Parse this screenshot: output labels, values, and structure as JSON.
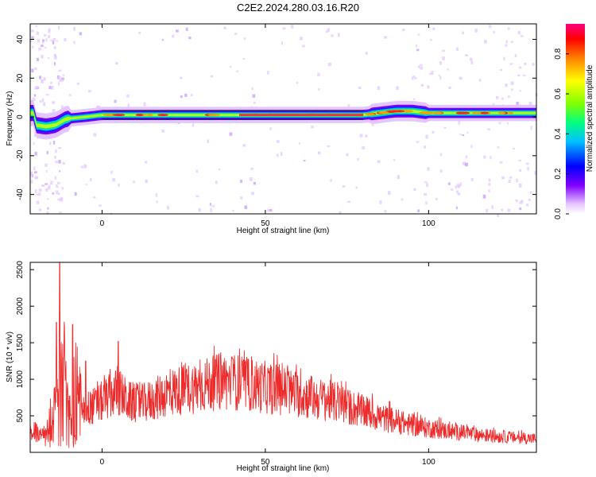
{
  "title": "C2E2.2024.280.03.16.R20",
  "chart_data": [
    {
      "type": "heatmap",
      "xlabel": "Height of straight line (km)",
      "ylabel": "Frequency (Hz)",
      "xlim": [
        -22,
        133
      ],
      "ylim": [
        -50,
        48
      ],
      "x_ticks": [
        0,
        50,
        100
      ],
      "x_tick_labels": [
        "0",
        "50",
        "100"
      ],
      "y_ticks": [
        40,
        20,
        0,
        -20,
        -40
      ],
      "y_tick_labels": [
        "40",
        "20",
        "0",
        "-20",
        "-40"
      ],
      "colorbar": {
        "label": "Normalized spectral amplitude",
        "range": [
          0,
          0.95
        ],
        "ticks": [
          0.0,
          0.2,
          0.4,
          0.6,
          0.8
        ],
        "tick_labels": [
          "0.0",
          "0.2",
          "0.4",
          "0.6",
          "0.8"
        ],
        "colormap": [
          "#ffffff",
          "#e8c8ff",
          "#8000ff",
          "#0000ff",
          "#00c0ff",
          "#00ff80",
          "#80ff00",
          "#ffff00",
          "#ff8000",
          "#ff0000",
          "#ff0080"
        ]
      },
      "ridge_frequency_hz": [
        {
          "x": -21,
          "y": -4
        },
        {
          "x": -17,
          "y": -5
        },
        {
          "x": -14,
          "y": -4
        },
        {
          "x": -11,
          "y": -1
        },
        {
          "x": -5,
          "y": 0
        },
        {
          "x": 0,
          "y": 1
        },
        {
          "x": 10,
          "y": 1
        },
        {
          "x": 30,
          "y": 1
        },
        {
          "x": 50,
          "y": 1
        },
        {
          "x": 70,
          "y": 1
        },
        {
          "x": 80,
          "y": 1
        },
        {
          "x": 85,
          "y": 2
        },
        {
          "x": 90,
          "y": 3
        },
        {
          "x": 95,
          "y": 3
        },
        {
          "x": 100,
          "y": 2
        },
        {
          "x": 110,
          "y": 2
        },
        {
          "x": 120,
          "y": 2
        },
        {
          "x": 133,
          "y": 2
        }
      ],
      "grid": false
    },
    {
      "type": "line",
      "xlabel": "Height of straight line (km)",
      "ylabel": "SNR (10 * v/v)",
      "xlim": [
        -22,
        133
      ],
      "ylim": [
        0,
        2600
      ],
      "x_ticks": [
        0,
        50,
        100
      ],
      "x_tick_labels": [
        "0",
        "50",
        "100"
      ],
      "y_ticks": [
        500,
        1000,
        1500,
        2000,
        2500
      ],
      "y_tick_labels": [
        "500",
        "1000",
        "1500",
        "2000",
        "2500"
      ],
      "series": [
        {
          "color": "#ee2b2b",
          "envelope": [
            {
              "x": -22,
              "y": 400
            },
            {
              "x": -19,
              "y": 250
            },
            {
              "x": -17,
              "y": 300
            },
            {
              "x": -15,
              "y": 700
            },
            {
              "x": -13,
              "y": 1000
            },
            {
              "x": -12,
              "y": 1600
            },
            {
              "x": -11,
              "y": 1100
            },
            {
              "x": -10,
              "y": 600
            },
            {
              "x": -9,
              "y": 900
            },
            {
              "x": -8,
              "y": 1300
            },
            {
              "x": -6,
              "y": 700
            },
            {
              "x": -4,
              "y": 650
            },
            {
              "x": -2,
              "y": 700
            },
            {
              "x": 0,
              "y": 750
            },
            {
              "x": 3,
              "y": 850
            },
            {
              "x": 5,
              "y": 900
            },
            {
              "x": 8,
              "y": 750
            },
            {
              "x": 12,
              "y": 720
            },
            {
              "x": 16,
              "y": 780
            },
            {
              "x": 20,
              "y": 880
            },
            {
              "x": 25,
              "y": 930
            },
            {
              "x": 30,
              "y": 980
            },
            {
              "x": 35,
              "y": 1030
            },
            {
              "x": 40,
              "y": 1050
            },
            {
              "x": 45,
              "y": 1000
            },
            {
              "x": 50,
              "y": 960
            },
            {
              "x": 55,
              "y": 920
            },
            {
              "x": 60,
              "y": 860
            },
            {
              "x": 65,
              "y": 800
            },
            {
              "x": 70,
              "y": 760
            },
            {
              "x": 75,
              "y": 680
            },
            {
              "x": 80,
              "y": 600
            },
            {
              "x": 85,
              "y": 520
            },
            {
              "x": 90,
              "y": 460
            },
            {
              "x": 95,
              "y": 400
            },
            {
              "x": 100,
              "y": 360
            },
            {
              "x": 105,
              "y": 320
            },
            {
              "x": 110,
              "y": 290
            },
            {
              "x": 115,
              "y": 260
            },
            {
              "x": 120,
              "y": 240
            },
            {
              "x": 125,
              "y": 220
            },
            {
              "x": 130,
              "y": 210
            },
            {
              "x": 133,
              "y": 200
            }
          ],
          "peaks": [
            {
              "x": -13,
              "y": 2600
            },
            {
              "x": -14,
              "y": 1780
            },
            {
              "x": -9,
              "y": 1750
            },
            {
              "x": -5,
              "y": 1250
            },
            {
              "x": 5,
              "y": 1520
            },
            {
              "x": 40,
              "y": 1280
            }
          ]
        }
      ],
      "grid": false
    }
  ]
}
